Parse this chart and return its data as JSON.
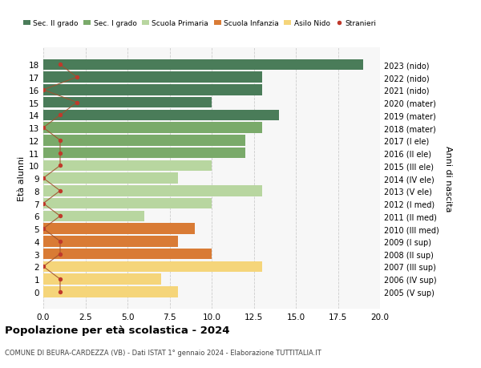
{
  "ages": [
    18,
    17,
    16,
    15,
    14,
    13,
    12,
    11,
    10,
    9,
    8,
    7,
    6,
    5,
    4,
    3,
    2,
    1,
    0
  ],
  "years": [
    "2005 (V sup)",
    "2006 (IV sup)",
    "2007 (III sup)",
    "2008 (II sup)",
    "2009 (I sup)",
    "2010 (III med)",
    "2011 (II med)",
    "2012 (I med)",
    "2013 (V ele)",
    "2014 (IV ele)",
    "2015 (III ele)",
    "2016 (II ele)",
    "2017 (I ele)",
    "2018 (mater)",
    "2019 (mater)",
    "2020 (mater)",
    "2021 (nido)",
    "2022 (nido)",
    "2023 (nido)"
  ],
  "bar_values": [
    19,
    13,
    13,
    10,
    14,
    13,
    12,
    12,
    10,
    8,
    13,
    10,
    6,
    9,
    8,
    10,
    13,
    7,
    8
  ],
  "bar_colors": [
    "#4a7c59",
    "#4a7c59",
    "#4a7c59",
    "#4a7c59",
    "#4a7c59",
    "#7aaa6a",
    "#7aaa6a",
    "#7aaa6a",
    "#b8d6a0",
    "#b8d6a0",
    "#b8d6a0",
    "#b8d6a0",
    "#b8d6a0",
    "#d97b35",
    "#d97b35",
    "#d97b35",
    "#f5d57a",
    "#f5d57a",
    "#f5d57a"
  ],
  "stranieri_x": [
    1,
    2,
    0,
    2,
    1,
    0,
    1,
    1,
    1,
    0,
    1,
    0,
    1,
    0,
    1,
    1,
    0,
    1,
    1
  ],
  "legend_labels": [
    "Sec. II grado",
    "Sec. I grado",
    "Scuola Primaria",
    "Scuola Infanzia",
    "Asilo Nido",
    "Stranieri"
  ],
  "legend_colors": [
    "#4a7c59",
    "#7aaa6a",
    "#b8d6a0",
    "#d97b35",
    "#f5d57a",
    "#c0392b"
  ],
  "ylabel": "Età alunni",
  "ylabel2": "Anni di nascita",
  "title": "Popolazione per età scolastica - 2024",
  "subtitle": "COMUNE DI BEURA-CARDEZZA (VB) - Dati ISTAT 1° gennaio 2024 - Elaborazione TUTTITALIA.IT",
  "xlim": [
    0,
    20
  ],
  "bg_color": "#f7f7f7",
  "grid_color": "#cccccc",
  "stranieri_color": "#c0392b",
  "stranieri_line_color": "#a0522d"
}
